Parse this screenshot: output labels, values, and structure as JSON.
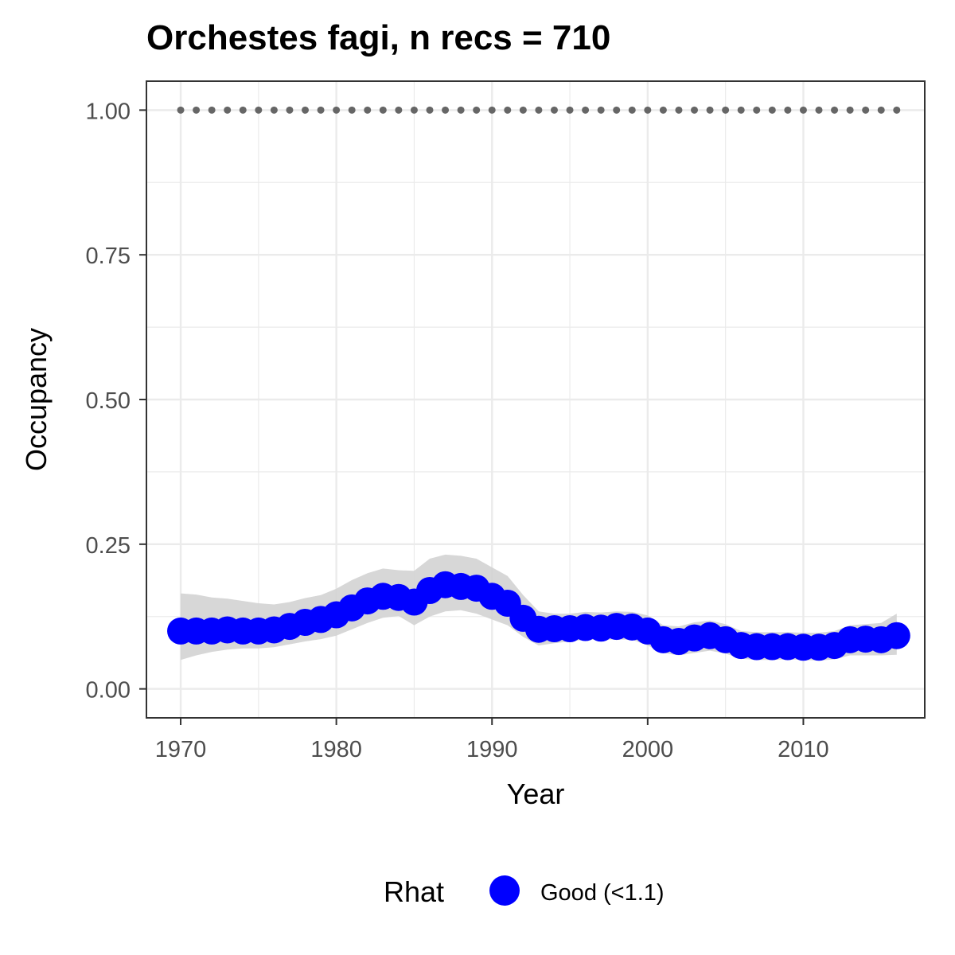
{
  "chart_data": {
    "type": "line",
    "title": "Orchestes fagi, n recs = 710",
    "xlabel": "Year",
    "ylabel": "Occupancy",
    "xlim": [
      1967.8,
      2017.8
    ],
    "ylim": [
      -0.05,
      1.05
    ],
    "x_ticks": [
      1970,
      1980,
      1990,
      2000,
      2010
    ],
    "x_tick_labels": [
      "1970",
      "1980",
      "1990",
      "2000",
      "2010"
    ],
    "y_ticks": [
      0,
      0.25,
      0.5,
      0.75,
      1.0
    ],
    "y_tick_labels": [
      "0.00",
      "0.25",
      "0.50",
      "0.75",
      "1.00"
    ],
    "grid": true,
    "legend": {
      "position": "bottom",
      "title": "Rhat",
      "items": [
        {
          "label": "Good (<1.1)",
          "color": "#0000ff"
        }
      ]
    },
    "colors": {
      "points": "#0000ff",
      "ribbon": "#d3d3d3",
      "reference": "#666666",
      "grid": "#ebebeb",
      "panel_border": "#333333"
    },
    "x": [
      1970,
      1971,
      1972,
      1973,
      1974,
      1975,
      1976,
      1977,
      1978,
      1979,
      1980,
      1981,
      1982,
      1983,
      1984,
      1985,
      1986,
      1987,
      1988,
      1989,
      1990,
      1991,
      1992,
      1993,
      1994,
      1995,
      1996,
      1997,
      1998,
      1999,
      2000,
      2001,
      2002,
      2003,
      2004,
      2005,
      2006,
      2007,
      2008,
      2009,
      2010,
      2011,
      2012,
      2013,
      2014,
      2015,
      2016
    ],
    "series": [
      {
        "values": [
          0.1,
          0.1,
          0.1,
          0.102,
          0.1,
          0.1,
          0.102,
          0.108,
          0.115,
          0.12,
          0.128,
          0.14,
          0.152,
          0.16,
          0.158,
          0.15,
          0.17,
          0.18,
          0.177,
          0.174,
          0.16,
          0.148,
          0.122,
          0.103,
          0.104,
          0.104,
          0.106,
          0.105,
          0.108,
          0.107,
          0.1,
          0.085,
          0.082,
          0.088,
          0.092,
          0.085,
          0.075,
          0.073,
          0.073,
          0.073,
          0.072,
          0.072,
          0.075,
          0.085,
          0.086,
          0.085,
          0.092
        ],
        "lower": [
          0.05,
          0.058,
          0.064,
          0.068,
          0.07,
          0.07,
          0.072,
          0.077,
          0.082,
          0.086,
          0.092,
          0.103,
          0.114,
          0.123,
          0.126,
          0.11,
          0.125,
          0.134,
          0.136,
          0.13,
          0.12,
          0.11,
          0.09,
          0.075,
          0.079,
          0.082,
          0.085,
          0.085,
          0.085,
          0.085,
          0.075,
          0.062,
          0.058,
          0.062,
          0.066,
          0.061,
          0.052,
          0.05,
          0.05,
          0.051,
          0.05,
          0.049,
          0.051,
          0.058,
          0.058,
          0.058,
          0.059
        ],
        "upper": [
          0.165,
          0.163,
          0.158,
          0.156,
          0.152,
          0.148,
          0.146,
          0.15,
          0.157,
          0.162,
          0.173,
          0.188,
          0.2,
          0.208,
          0.205,
          0.204,
          0.225,
          0.232,
          0.23,
          0.225,
          0.21,
          0.195,
          0.162,
          0.134,
          0.13,
          0.13,
          0.133,
          0.132,
          0.134,
          0.133,
          0.127,
          0.11,
          0.108,
          0.115,
          0.118,
          0.112,
          0.1,
          0.098,
          0.098,
          0.098,
          0.097,
          0.097,
          0.1,
          0.11,
          0.112,
          0.114,
          0.13
        ]
      },
      {
        "values": [
          1,
          1,
          1,
          1,
          1,
          1,
          1,
          1,
          1,
          1,
          1,
          1,
          1,
          1,
          1,
          1,
          1,
          1,
          1,
          1,
          1,
          1,
          1,
          1,
          1,
          1,
          1,
          1,
          1,
          1,
          1,
          1,
          1,
          1,
          1,
          1,
          1,
          1,
          1,
          1,
          1,
          1,
          1,
          1,
          1,
          1,
          1
        ]
      }
    ]
  }
}
